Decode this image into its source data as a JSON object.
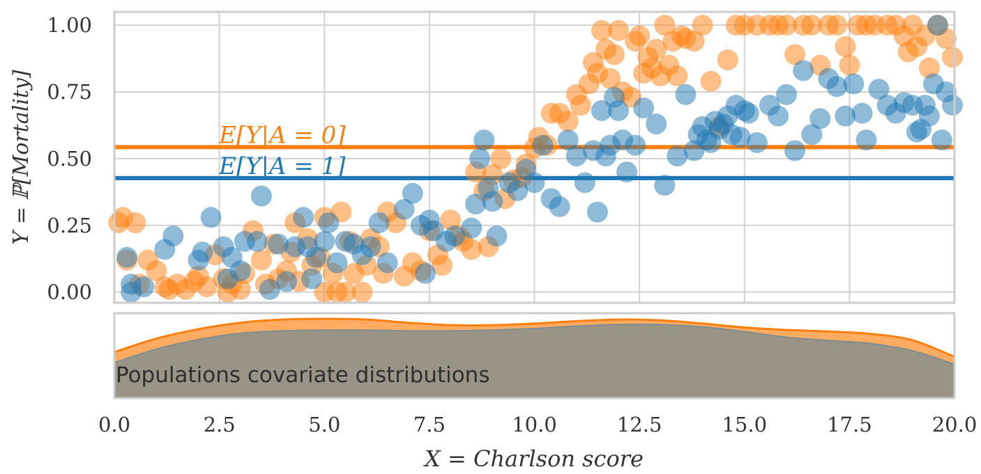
{
  "chart_data": [
    {
      "type": "scatter",
      "ylabel": "Y = ℙ[Mortality]",
      "xlim": [
        0,
        20
      ],
      "ylim": [
        -0.04,
        1.05
      ],
      "x_ticks": [
        "0.0",
        "2.5",
        "5.0",
        "7.5",
        "10.0",
        "12.5",
        "15.0",
        "17.5",
        "20.0"
      ],
      "y_ticks": [
        "0.00",
        "0.25",
        "0.50",
        "0.75",
        "1.00"
      ],
      "grid": true,
      "hlines": [
        {
          "label": "E[Y|A = 0]",
          "y": 0.543,
          "color": "#ff7f0e"
        },
        {
          "label": "E[Y|A = 1]",
          "y": 0.427,
          "color": "#1f77b4"
        }
      ],
      "series": [
        {
          "color": "#ff7f0e",
          "points": [
            [
              0.1,
              0.26
            ],
            [
              0.2,
              0.28
            ],
            [
              0.3,
              0.12
            ],
            [
              0.5,
              0.26
            ],
            [
              0.6,
              0.03
            ],
            [
              0.8,
              0.12
            ],
            [
              1.0,
              0.08
            ],
            [
              1.2,
              0.02
            ],
            [
              1.3,
              0.01
            ],
            [
              1.5,
              0.03
            ],
            [
              1.7,
              0.01
            ],
            [
              1.9,
              0.04
            ],
            [
              2.0,
              0.06
            ],
            [
              2.2,
              0.02
            ],
            [
              2.4,
              0.14
            ],
            [
              2.6,
              0.05
            ],
            [
              2.7,
              0.0
            ],
            [
              2.8,
              0.03
            ],
            [
              3.0,
              0.01
            ],
            [
              3.1,
              0.07
            ],
            [
              3.3,
              0.23
            ],
            [
              3.5,
              0.12
            ],
            [
              3.6,
              0.03
            ],
            [
              3.8,
              0.18
            ],
            [
              3.9,
              0.05
            ],
            [
              4.1,
              0.08
            ],
            [
              4.2,
              0.15
            ],
            [
              4.3,
              0.26
            ],
            [
              4.4,
              0.04
            ],
            [
              4.6,
              0.2
            ],
            [
              4.7,
              0.1
            ],
            [
              4.9,
              0.13
            ],
            [
              5.0,
              0.28
            ],
            [
              5.0,
              0.0
            ],
            [
              5.2,
              0.07
            ],
            [
              5.3,
              0.0
            ],
            [
              5.4,
              0.3
            ],
            [
              5.5,
              0.0
            ],
            [
              5.6,
              0.19
            ],
            [
              5.7,
              0.07
            ],
            [
              5.9,
              0.0
            ],
            [
              6.0,
              0.1
            ],
            [
              6.1,
              0.2
            ],
            [
              6.3,
              0.17
            ],
            [
              6.4,
              0.07
            ],
            [
              6.5,
              0.3
            ],
            [
              6.7,
              0.26
            ],
            [
              6.9,
              0.06
            ],
            [
              7.1,
              0.11
            ],
            [
              7.3,
              0.08
            ],
            [
              7.5,
              0.23
            ],
            [
              7.7,
              0.14
            ],
            [
              7.8,
              0.1
            ],
            [
              8.0,
              0.27
            ],
            [
              8.2,
              0.21
            ],
            [
              8.3,
              0.19
            ],
            [
              8.5,
              0.16
            ],
            [
              8.6,
              0.45
            ],
            [
              8.8,
              0.38
            ],
            [
              8.9,
              0.17
            ],
            [
              9.0,
              0.44
            ],
            [
              9.2,
              0.5
            ],
            [
              9.3,
              0.35
            ],
            [
              9.5,
              0.42
            ],
            [
              9.7,
              0.43
            ],
            [
              9.8,
              0.48
            ],
            [
              10.0,
              0.54
            ],
            [
              10.1,
              0.58
            ],
            [
              10.3,
              0.55
            ],
            [
              10.4,
              0.67
            ],
            [
              10.6,
              0.67
            ],
            [
              10.8,
              0.64
            ],
            [
              11.0,
              0.74
            ],
            [
              11.1,
              0.7
            ],
            [
              11.3,
              0.78
            ],
            [
              11.4,
              0.86
            ],
            [
              11.5,
              0.82
            ],
            [
              11.6,
              0.98
            ],
            [
              11.7,
              0.91
            ],
            [
              11.8,
              0.8
            ],
            [
              11.9,
              0.89
            ],
            [
              12.0,
              0.98
            ],
            [
              12.1,
              0.75
            ],
            [
              12.3,
              0.73
            ],
            [
              12.4,
              0.94
            ],
            [
              12.5,
              0.96
            ],
            [
              12.6,
              0.82
            ],
            [
              12.7,
              0.88
            ],
            [
              12.8,
              0.84
            ],
            [
              12.9,
              0.91
            ],
            [
              13.0,
              0.81
            ],
            [
              13.1,
              1.0
            ],
            [
              13.2,
              0.85
            ],
            [
              13.3,
              0.94
            ],
            [
              13.4,
              0.81
            ],
            [
              13.5,
              0.96
            ],
            [
              13.6,
              0.95
            ],
            [
              13.8,
              0.94
            ],
            [
              14.0,
              1.0
            ],
            [
              14.2,
              0.79
            ],
            [
              14.4,
              0.62
            ],
            [
              14.6,
              0.87
            ],
            [
              14.8,
              1.0
            ],
            [
              15.0,
              1.0
            ],
            [
              15.3,
              1.0
            ],
            [
              15.6,
              1.0
            ],
            [
              15.8,
              1.0
            ],
            [
              16.0,
              1.0
            ],
            [
              16.2,
              0.89
            ],
            [
              16.4,
              1.0
            ],
            [
              16.6,
              1.0
            ],
            [
              16.8,
              0.85
            ],
            [
              17.0,
              1.0
            ],
            [
              17.2,
              1.0
            ],
            [
              17.4,
              0.92
            ],
            [
              17.5,
              0.85
            ],
            [
              17.7,
              1.0
            ],
            [
              17.9,
              1.0
            ],
            [
              18.1,
              1.0
            ],
            [
              18.4,
              1.0
            ],
            [
              18.6,
              1.0
            ],
            [
              18.8,
              0.96
            ],
            [
              18.9,
              0.9
            ],
            [
              19.0,
              1.0
            ],
            [
              19.1,
              0.92
            ],
            [
              19.3,
              0.96
            ],
            [
              19.4,
              0.84
            ],
            [
              19.6,
              1.0
            ],
            [
              19.8,
              0.95
            ],
            [
              19.95,
              0.88
            ]
          ]
        },
        {
          "color": "#1f77b4",
          "points": [
            [
              0.3,
              0.13
            ],
            [
              0.4,
              0.03
            ],
            [
              0.4,
              0.0
            ],
            [
              0.7,
              0.02
            ],
            [
              1.2,
              0.16
            ],
            [
              1.4,
              0.21
            ],
            [
              2.0,
              0.12
            ],
            [
              2.1,
              0.15
            ],
            [
              2.3,
              0.28
            ],
            [
              2.6,
              0.17
            ],
            [
              2.7,
              0.05
            ],
            [
              2.8,
              0.13
            ],
            [
              3.0,
              0.08
            ],
            [
              3.1,
              0.19
            ],
            [
              3.4,
              0.19
            ],
            [
              3.5,
              0.36
            ],
            [
              3.7,
              0.01
            ],
            [
              3.9,
              0.18
            ],
            [
              4.1,
              0.04
            ],
            [
              4.3,
              0.17
            ],
            [
              4.5,
              0.28
            ],
            [
              4.6,
              0.17
            ],
            [
              4.7,
              0.05
            ],
            [
              4.8,
              0.13
            ],
            [
              5.0,
              0.19
            ],
            [
              5.1,
              0.26
            ],
            [
              5.3,
              0.11
            ],
            [
              5.5,
              0.19
            ],
            [
              5.7,
              0.18
            ],
            [
              5.9,
              0.14
            ],
            [
              6.1,
              0.17
            ],
            [
              6.3,
              0.26
            ],
            [
              6.5,
              0.11
            ],
            [
              6.9,
              0.31
            ],
            [
              7.1,
              0.37
            ],
            [
              7.3,
              0.25
            ],
            [
              7.4,
              0.07
            ],
            [
              7.5,
              0.27
            ],
            [
              7.6,
              0.23
            ],
            [
              7.9,
              0.19
            ],
            [
              8.1,
              0.21
            ],
            [
              8.5,
              0.24
            ],
            [
              8.6,
              0.33
            ],
            [
              8.7,
              0.5
            ],
            [
              8.8,
              0.57
            ],
            [
              8.9,
              0.39
            ],
            [
              9.0,
              0.34
            ],
            [
              9.1,
              0.21
            ],
            [
              9.4,
              0.41
            ],
            [
              9.6,
              0.38
            ],
            [
              9.8,
              0.46
            ],
            [
              10.0,
              0.41
            ],
            [
              10.2,
              0.55
            ],
            [
              10.4,
              0.35
            ],
            [
              10.6,
              0.32
            ],
            [
              10.8,
              0.57
            ],
            [
              11.0,
              0.51
            ],
            [
              11.2,
              0.41
            ],
            [
              11.4,
              0.53
            ],
            [
              11.5,
              0.3
            ],
            [
              11.6,
              0.68
            ],
            [
              11.7,
              0.51
            ],
            [
              11.8,
              0.55
            ],
            [
              11.9,
              0.73
            ],
            [
              12.0,
              0.68
            ],
            [
              12.1,
              0.57
            ],
            [
              12.2,
              0.45
            ],
            [
              12.4,
              0.55
            ],
            [
              12.6,
              0.69
            ],
            [
              12.9,
              0.63
            ],
            [
              13.1,
              0.4
            ],
            [
              13.4,
              0.51
            ],
            [
              13.6,
              0.74
            ],
            [
              13.8,
              0.53
            ],
            [
              13.9,
              0.59
            ],
            [
              14.0,
              0.62
            ],
            [
              14.1,
              0.57
            ],
            [
              14.2,
              0.56
            ],
            [
              14.3,
              0.64
            ],
            [
              14.4,
              0.61
            ],
            [
              14.5,
              0.63
            ],
            [
              14.6,
              0.66
            ],
            [
              14.7,
              0.59
            ],
            [
              14.8,
              0.7
            ],
            [
              14.9,
              0.58
            ],
            [
              15.0,
              0.68
            ],
            [
              15.1,
              0.67
            ],
            [
              15.3,
              0.56
            ],
            [
              15.6,
              0.7
            ],
            [
              15.8,
              0.66
            ],
            [
              16.0,
              0.74
            ],
            [
              16.2,
              0.53
            ],
            [
              16.4,
              0.83
            ],
            [
              16.6,
              0.59
            ],
            [
              16.8,
              0.65
            ],
            [
              17.0,
              0.8
            ],
            [
              17.2,
              0.77
            ],
            [
              17.4,
              0.66
            ],
            [
              17.6,
              0.78
            ],
            [
              17.8,
              0.67
            ],
            [
              17.9,
              0.57
            ],
            [
              18.2,
              0.76
            ],
            [
              18.4,
              0.7
            ],
            [
              18.6,
              0.67
            ],
            [
              18.8,
              0.71
            ],
            [
              19.0,
              0.7
            ],
            [
              19.1,
              0.6
            ],
            [
              19.2,
              0.61
            ],
            [
              19.3,
              0.7
            ],
            [
              19.4,
              0.66
            ],
            [
              19.5,
              0.78
            ],
            [
              19.6,
              1.0
            ],
            [
              19.7,
              0.57
            ],
            [
              19.8,
              0.75
            ],
            [
              19.95,
              0.7
            ]
          ]
        }
      ]
    },
    {
      "type": "area",
      "title": "Populations covariate distributions",
      "xlim": [
        0,
        20
      ],
      "series": [
        {
          "color": "#ff7f0e",
          "x": [
            0,
            1,
            2,
            3,
            4,
            5,
            6,
            7,
            8,
            9,
            10,
            11,
            12,
            13,
            14,
            15,
            16,
            17,
            18,
            19,
            20
          ],
          "density": [
            0.58,
            0.75,
            0.87,
            0.95,
            0.99,
            1.0,
            0.99,
            0.95,
            0.92,
            0.92,
            0.94,
            0.97,
            0.99,
            0.98,
            0.94,
            0.89,
            0.86,
            0.84,
            0.81,
            0.73,
            0.52
          ]
        },
        {
          "color": "#1f77b4",
          "x": [
            0,
            1,
            2,
            3,
            4,
            5,
            6,
            7,
            8,
            9,
            10,
            11,
            12,
            13,
            14,
            15,
            16,
            17,
            18,
            19,
            20
          ],
          "density": [
            0.45,
            0.62,
            0.74,
            0.82,
            0.85,
            0.86,
            0.86,
            0.85,
            0.85,
            0.86,
            0.88,
            0.91,
            0.93,
            0.93,
            0.9,
            0.84,
            0.77,
            0.73,
            0.69,
            0.6,
            0.43
          ]
        }
      ]
    }
  ],
  "axes": {
    "xlabel": "X = Charlson score"
  }
}
